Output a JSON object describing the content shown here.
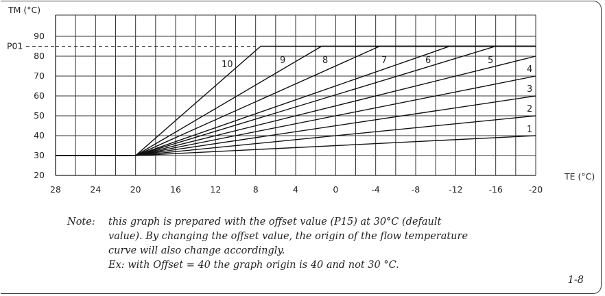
{
  "chart_data": {
    "type": "line",
    "ylabel": "TM (°C)",
    "xlabel": "TE (°C)",
    "xlim": [
      28,
      -20
    ],
    "ylim": [
      20,
      95
    ],
    "x_ticks": [
      "28",
      "24",
      "20",
      "16",
      "12",
      "8",
      "4",
      "0",
      "-4",
      "-8",
      "-12",
      "-16",
      "-20"
    ],
    "y_ticks": [
      "20",
      "30",
      "40",
      "50",
      "60",
      "70",
      "80",
      "90"
    ],
    "grid": true,
    "reference_line": {
      "label": "P01",
      "y": 85,
      "style": "dashed"
    },
    "series": [
      {
        "name": "1",
        "points": [
          [
            28,
            30
          ],
          [
            20,
            30
          ],
          [
            -20,
            40
          ]
        ]
      },
      {
        "name": "2",
        "points": [
          [
            28,
            30
          ],
          [
            20,
            30
          ],
          [
            -20,
            50
          ]
        ]
      },
      {
        "name": "3",
        "points": [
          [
            28,
            30
          ],
          [
            20,
            30
          ],
          [
            -20,
            60
          ]
        ]
      },
      {
        "name": "4",
        "points": [
          [
            28,
            30
          ],
          [
            20,
            30
          ],
          [
            -20,
            70
          ]
        ]
      },
      {
        "name": "5",
        "points": [
          [
            28,
            30
          ],
          [
            20,
            30
          ],
          [
            -20,
            80
          ]
        ]
      },
      {
        "name": "6",
        "points": [
          [
            28,
            30
          ],
          [
            20,
            30
          ],
          [
            -16,
            85
          ],
          [
            -20,
            85
          ]
        ]
      },
      {
        "name": "7",
        "points": [
          [
            28,
            30
          ],
          [
            20,
            30
          ],
          [
            -11.4,
            85
          ],
          [
            -20,
            85
          ]
        ]
      },
      {
        "name": "8",
        "points": [
          [
            28,
            30
          ],
          [
            20,
            30
          ],
          [
            -4.4,
            85
          ],
          [
            -20,
            85
          ]
        ]
      },
      {
        "name": "9",
        "points": [
          [
            28,
            30
          ],
          [
            20,
            30
          ],
          [
            1.4,
            85
          ],
          [
            -20,
            85
          ]
        ]
      },
      {
        "name": "10",
        "points": [
          [
            28,
            30
          ],
          [
            20,
            30
          ],
          [
            7.5,
            85
          ],
          [
            -20,
            85
          ]
        ]
      }
    ]
  },
  "note": {
    "label": "Note:",
    "lines": [
      "this graph is prepared with the offset value (P15) at 30°C (default",
      "value). By changing the offset value, the origin of the flow temperature",
      "curve will also change accordingly.",
      "Ex: with Offset = 40 the graph origin is 40 and not 30 °C."
    ]
  },
  "figure_id": "1-8"
}
